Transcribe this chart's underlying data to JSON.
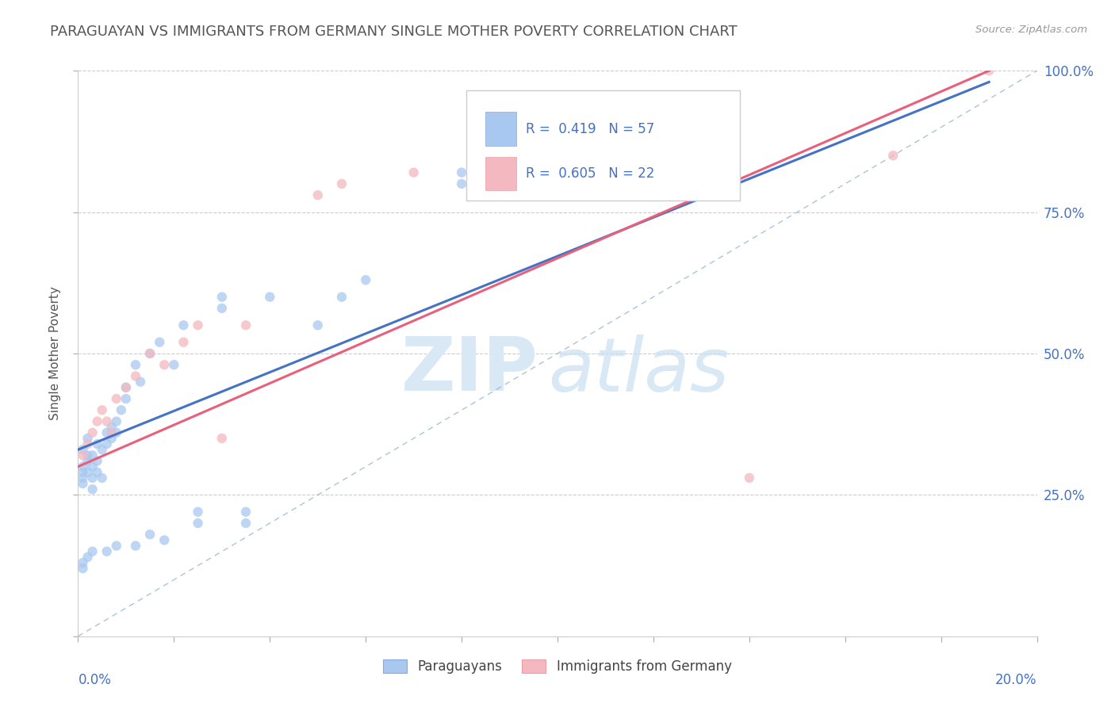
{
  "title": "PARAGUAYAN VS IMMIGRANTS FROM GERMANY SINGLE MOTHER POVERTY CORRELATION CHART",
  "source": "Source: ZipAtlas.com",
  "ylabel": "Single Mother Poverty",
  "legend_label_blue": "Paraguayans",
  "legend_label_pink": "Immigrants from Germany",
  "R_blue": 0.419,
  "N_blue": 57,
  "R_pink": 0.605,
  "N_pink": 22,
  "blue_color": "#A8C8F0",
  "pink_color": "#F4B8C0",
  "blue_line_color": "#4472C4",
  "pink_line_color": "#E8607A",
  "ref_line_color": "#A0B8D0",
  "xlim": [
    0.0,
    0.2
  ],
  "ylim": [
    0.0,
    1.0
  ],
  "ytick_positions": [
    0.0,
    0.25,
    0.5,
    0.75,
    1.0
  ],
  "ytick_labels": [
    "",
    "25.0%",
    "50.0%",
    "75.0%",
    "100.0%"
  ],
  "blue_scatter_x": [
    0.001,
    0.001,
    0.001,
    0.001,
    0.001,
    0.002,
    0.002,
    0.002,
    0.002,
    0.003,
    0.003,
    0.003,
    0.003,
    0.004,
    0.004,
    0.004,
    0.005,
    0.005,
    0.006,
    0.006,
    0.007,
    0.007,
    0.008,
    0.008,
    0.009,
    0.01,
    0.01,
    0.012,
    0.013,
    0.015,
    0.017,
    0.02,
    0.022,
    0.03,
    0.03,
    0.04,
    0.05,
    0.055,
    0.06,
    0.08,
    0.08,
    0.1,
    0.1,
    0.11,
    0.035,
    0.035,
    0.025,
    0.025,
    0.015,
    0.012,
    0.018,
    0.008,
    0.006,
    0.003,
    0.002,
    0.001,
    0.001
  ],
  "blue_scatter_y": [
    0.33,
    0.3,
    0.28,
    0.27,
    0.29,
    0.32,
    0.29,
    0.31,
    0.35,
    0.3,
    0.28,
    0.26,
    0.32,
    0.31,
    0.34,
    0.29,
    0.28,
    0.33,
    0.36,
    0.34,
    0.35,
    0.37,
    0.38,
    0.36,
    0.4,
    0.44,
    0.42,
    0.48,
    0.45,
    0.5,
    0.52,
    0.48,
    0.55,
    0.6,
    0.58,
    0.6,
    0.55,
    0.6,
    0.63,
    0.8,
    0.82,
    0.8,
    0.82,
    0.8,
    0.22,
    0.2,
    0.2,
    0.22,
    0.18,
    0.16,
    0.17,
    0.16,
    0.15,
    0.15,
    0.14,
    0.13,
    0.12
  ],
  "pink_scatter_x": [
    0.001,
    0.002,
    0.003,
    0.004,
    0.005,
    0.006,
    0.007,
    0.008,
    0.01,
    0.012,
    0.015,
    0.018,
    0.022,
    0.025,
    0.03,
    0.035,
    0.05,
    0.055,
    0.07,
    0.14,
    0.17,
    0.19
  ],
  "pink_scatter_y": [
    0.32,
    0.34,
    0.36,
    0.38,
    0.4,
    0.38,
    0.36,
    0.42,
    0.44,
    0.46,
    0.5,
    0.48,
    0.52,
    0.55,
    0.35,
    0.55,
    0.78,
    0.8,
    0.82,
    0.28,
    0.85,
    1.0
  ],
  "blue_trend_x0": 0.0,
  "blue_trend_y0": 0.33,
  "blue_trend_x1": 0.19,
  "blue_trend_y1": 0.98,
  "pink_trend_x0": 0.0,
  "pink_trend_y0": 0.3,
  "pink_trend_x1": 0.19,
  "pink_trend_y1": 1.0,
  "background_color": "#FFFFFF"
}
